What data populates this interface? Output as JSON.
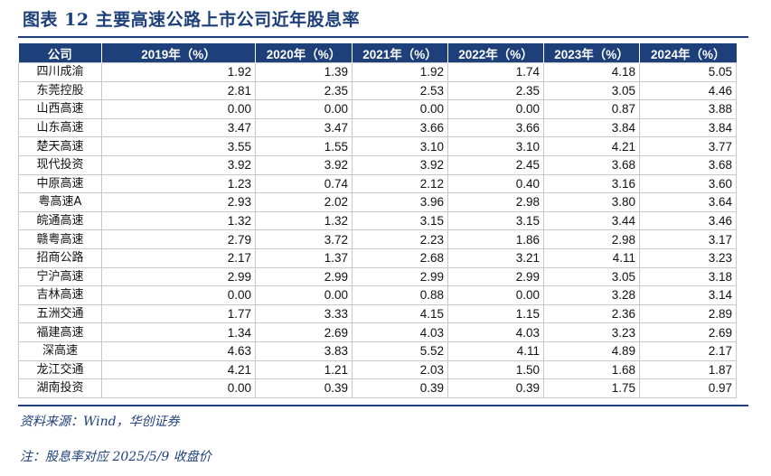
{
  "title": "图表 12    主要高速公路上市公司近年股息率",
  "table": {
    "headers": [
      "公司",
      "2019年（%）",
      "2020年（%）",
      "2021年（%）",
      "2022年（%）",
      "2023年（%）",
      "2024年（%）"
    ],
    "rows": [
      [
        "四川成渝",
        "1.92",
        "1.39",
        "1.92",
        "1.74",
        "4.18",
        "5.05"
      ],
      [
        "东莞控股",
        "2.81",
        "2.35",
        "2.53",
        "2.35",
        "3.05",
        "4.46"
      ],
      [
        "山西高速",
        "0.00",
        "0.00",
        "0.00",
        "0.00",
        "0.87",
        "3.88"
      ],
      [
        "山东高速",
        "3.47",
        "3.47",
        "3.66",
        "3.66",
        "3.84",
        "3.84"
      ],
      [
        "楚天高速",
        "3.55",
        "1.55",
        "3.10",
        "3.10",
        "4.21",
        "3.77"
      ],
      [
        "现代投资",
        "3.92",
        "3.92",
        "3.92",
        "2.45",
        "3.68",
        "3.68"
      ],
      [
        "中原高速",
        "1.23",
        "0.74",
        "2.12",
        "0.40",
        "3.16",
        "3.60"
      ],
      [
        "粤高速A",
        "2.93",
        "2.02",
        "3.96",
        "2.98",
        "3.80",
        "3.64"
      ],
      [
        "皖通高速",
        "1.32",
        "1.32",
        "3.15",
        "3.15",
        "3.44",
        "3.46"
      ],
      [
        "赣粤高速",
        "2.79",
        "3.72",
        "2.23",
        "1.86",
        "2.98",
        "3.17"
      ],
      [
        "招商公路",
        "2.17",
        "1.37",
        "2.68",
        "3.21",
        "4.11",
        "3.23"
      ],
      [
        "宁沪高速",
        "2.99",
        "2.99",
        "2.99",
        "2.99",
        "3.05",
        "3.18"
      ],
      [
        "吉林高速",
        "0.00",
        "0.00",
        "0.88",
        "0.00",
        "3.28",
        "3.14"
      ],
      [
        "五洲交通",
        "1.77",
        "3.33",
        "4.15",
        "1.15",
        "2.36",
        "2.89"
      ],
      [
        "福建高速",
        "1.34",
        "2.69",
        "4.03",
        "4.03",
        "3.23",
        "2.69"
      ],
      [
        "深高速",
        "4.63",
        "3.83",
        "5.52",
        "4.11",
        "4.89",
        "2.17"
      ],
      [
        "龙江交通",
        "4.21",
        "1.21",
        "2.03",
        "1.50",
        "1.68",
        "1.87"
      ],
      [
        "湖南投资",
        "0.00",
        "0.39",
        "0.39",
        "0.39",
        "1.75",
        "0.97"
      ]
    ]
  },
  "source": "资料来源：Wind，华创证券",
  "note": "注：股息率对应 2025/5/9 收盘价",
  "colors": {
    "accent": "#1d3f7a",
    "grid": "#c9c9c9"
  }
}
